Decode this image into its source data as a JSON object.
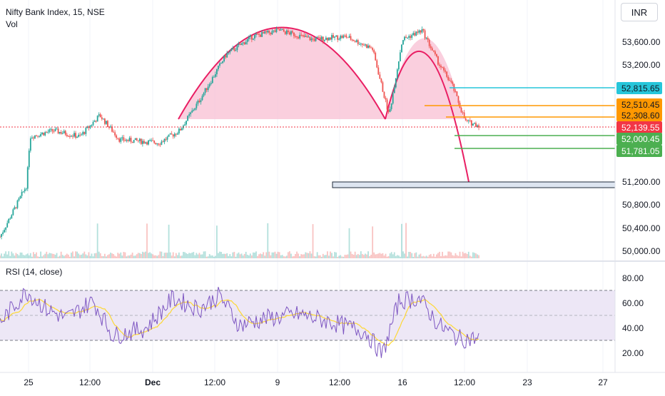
{
  "header": {
    "symbol_title": "Nifty Bank Index, 15, NSE",
    "volume_label": "Vol",
    "currency": "INR"
  },
  "rsi_panel": {
    "title": "RSI (14, close)",
    "upper_band": 70,
    "lower_band": 30,
    "tick_labels": [
      "80.00",
      "60.00",
      "40.00",
      "20.00"
    ]
  },
  "price_axis": {
    "tick_labels": [
      "53,600.00",
      "53,200.00",
      "51,200.00",
      "50,800.00",
      "50,400.00",
      "50,000.00"
    ],
    "badges": [
      {
        "label": "52,815.65",
        "color": "#26c6da"
      },
      {
        "label": "52,510.45",
        "color": "#ff9800"
      },
      {
        "label": "52,308.60",
        "color": "#ff9800"
      },
      {
        "label": "52,139.55",
        "color": "#f23645"
      },
      {
        "label": "52,000.45",
        "color": "#4caf50"
      },
      {
        "label": "51,781.05",
        "color": "#4caf50"
      }
    ]
  },
  "time_axis": {
    "tick_labels": [
      "25",
      "12:00",
      "Dec",
      "12:00",
      "9",
      "12:00",
      "16",
      "12:00",
      "23",
      "27"
    ]
  },
  "colors": {
    "up_candle": "#26a69a",
    "down_candle": "#ef5350",
    "cup_fill": "#f8bbd0",
    "cup_stroke": "#e91e63",
    "rsi_line": "#7e57c2",
    "rsi_ma": "#fdd835",
    "rsi_band_fill": "#ede7f6",
    "last_price": "#f23645"
  },
  "chart_data": {
    "type": "candlestick",
    "title": "Nifty Bank Index, 15, NSE",
    "y_range": [
      49900,
      54200
    ],
    "rsi_range": [
      15,
      90
    ],
    "series": [
      {
        "name": "Nifty Bank Index",
        "description_values": "intraday 15-min candles"
      },
      {
        "name": "RSI (14, close)"
      }
    ],
    "anchors": [
      {
        "x": 0,
        "y": 50300
      },
      {
        "x": 0.04,
        "y": 51150
      },
      {
        "x": 0.045,
        "y": 51950
      },
      {
        "x": 0.08,
        "y": 52050
      },
      {
        "x": 0.12,
        "y": 51950
      },
      {
        "x": 0.15,
        "y": 52300
      },
      {
        "x": 0.18,
        "y": 51900
      },
      {
        "x": 0.24,
        "y": 51850
      },
      {
        "x": 0.27,
        "y": 52050
      },
      {
        "x": 0.3,
        "y": 52550
      },
      {
        "x": 0.34,
        "y": 53300
      },
      {
        "x": 0.38,
        "y": 53600
      },
      {
        "x": 0.42,
        "y": 53700
      },
      {
        "x": 0.47,
        "y": 53550
      },
      {
        "x": 0.52,
        "y": 53600
      },
      {
        "x": 0.56,
        "y": 53400
      },
      {
        "x": 0.585,
        "y": 52300
      },
      {
        "x": 0.605,
        "y": 53550
      },
      {
        "x": 0.635,
        "y": 53700
      },
      {
        "x": 0.66,
        "y": 53150
      },
      {
        "x": 0.68,
        "y": 52800
      },
      {
        "x": 0.7,
        "y": 52200
      },
      {
        "x": 0.72,
        "y": 52139.55
      }
    ],
    "levels": [
      52815.65,
      52510.45,
      52308.6,
      52139.55,
      52000.45,
      51781.05
    ],
    "target_zone": [
      51130,
      51230
    ]
  }
}
